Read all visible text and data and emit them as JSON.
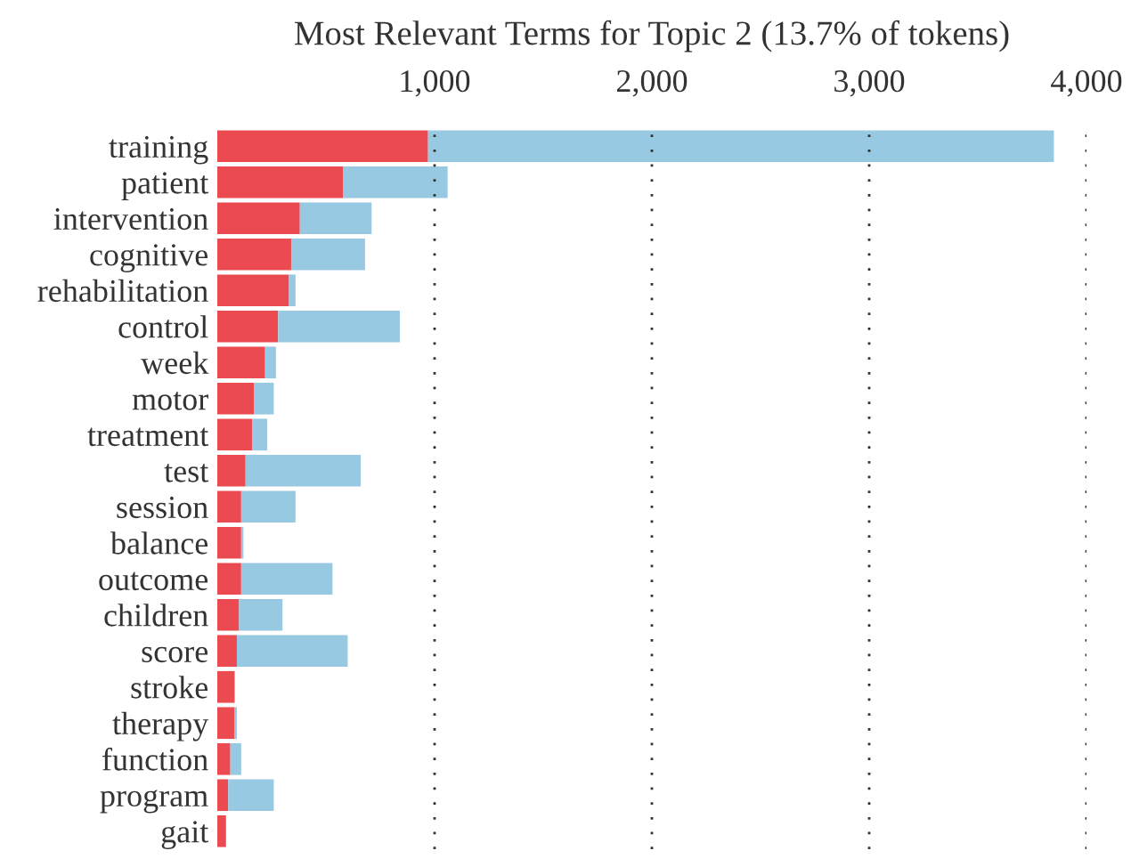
{
  "chart_data": {
    "type": "bar",
    "orientation": "horizontal",
    "title": "Most Relevant Terms for Topic 2 (13.7% of tokens)",
    "categories": [
      "training",
      "patient",
      "intervention",
      "cognitive",
      "rehabilitation",
      "control",
      "week",
      "motor",
      "treatment",
      "test",
      "session",
      "balance",
      "outcome",
      "children",
      "score",
      "stroke",
      "therapy",
      "function",
      "program",
      "gait"
    ],
    "series": [
      {
        "color": "#eb4a51",
        "values": [
          970,
          580,
          380,
          340,
          330,
          280,
          220,
          170,
          160,
          130,
          110,
          110,
          110,
          100,
          90,
          80,
          80,
          60,
          50,
          40
        ]
      },
      {
        "color": "#98c9e2",
        "values": [
          2880,
          480,
          330,
          340,
          30,
          560,
          50,
          90,
          70,
          530,
          250,
          10,
          420,
          200,
          510,
          0,
          10,
          50,
          210,
          0
        ]
      }
    ],
    "stacked": true,
    "xlim": [
      0,
      4000
    ],
    "xticks": [
      {
        "value": 1000,
        "label": "1,000"
      },
      {
        "value": 2000,
        "label": "2,000"
      },
      {
        "value": 3000,
        "label": "3,000"
      },
      {
        "value": 4000,
        "label": "4,000"
      }
    ],
    "grid": "x"
  }
}
